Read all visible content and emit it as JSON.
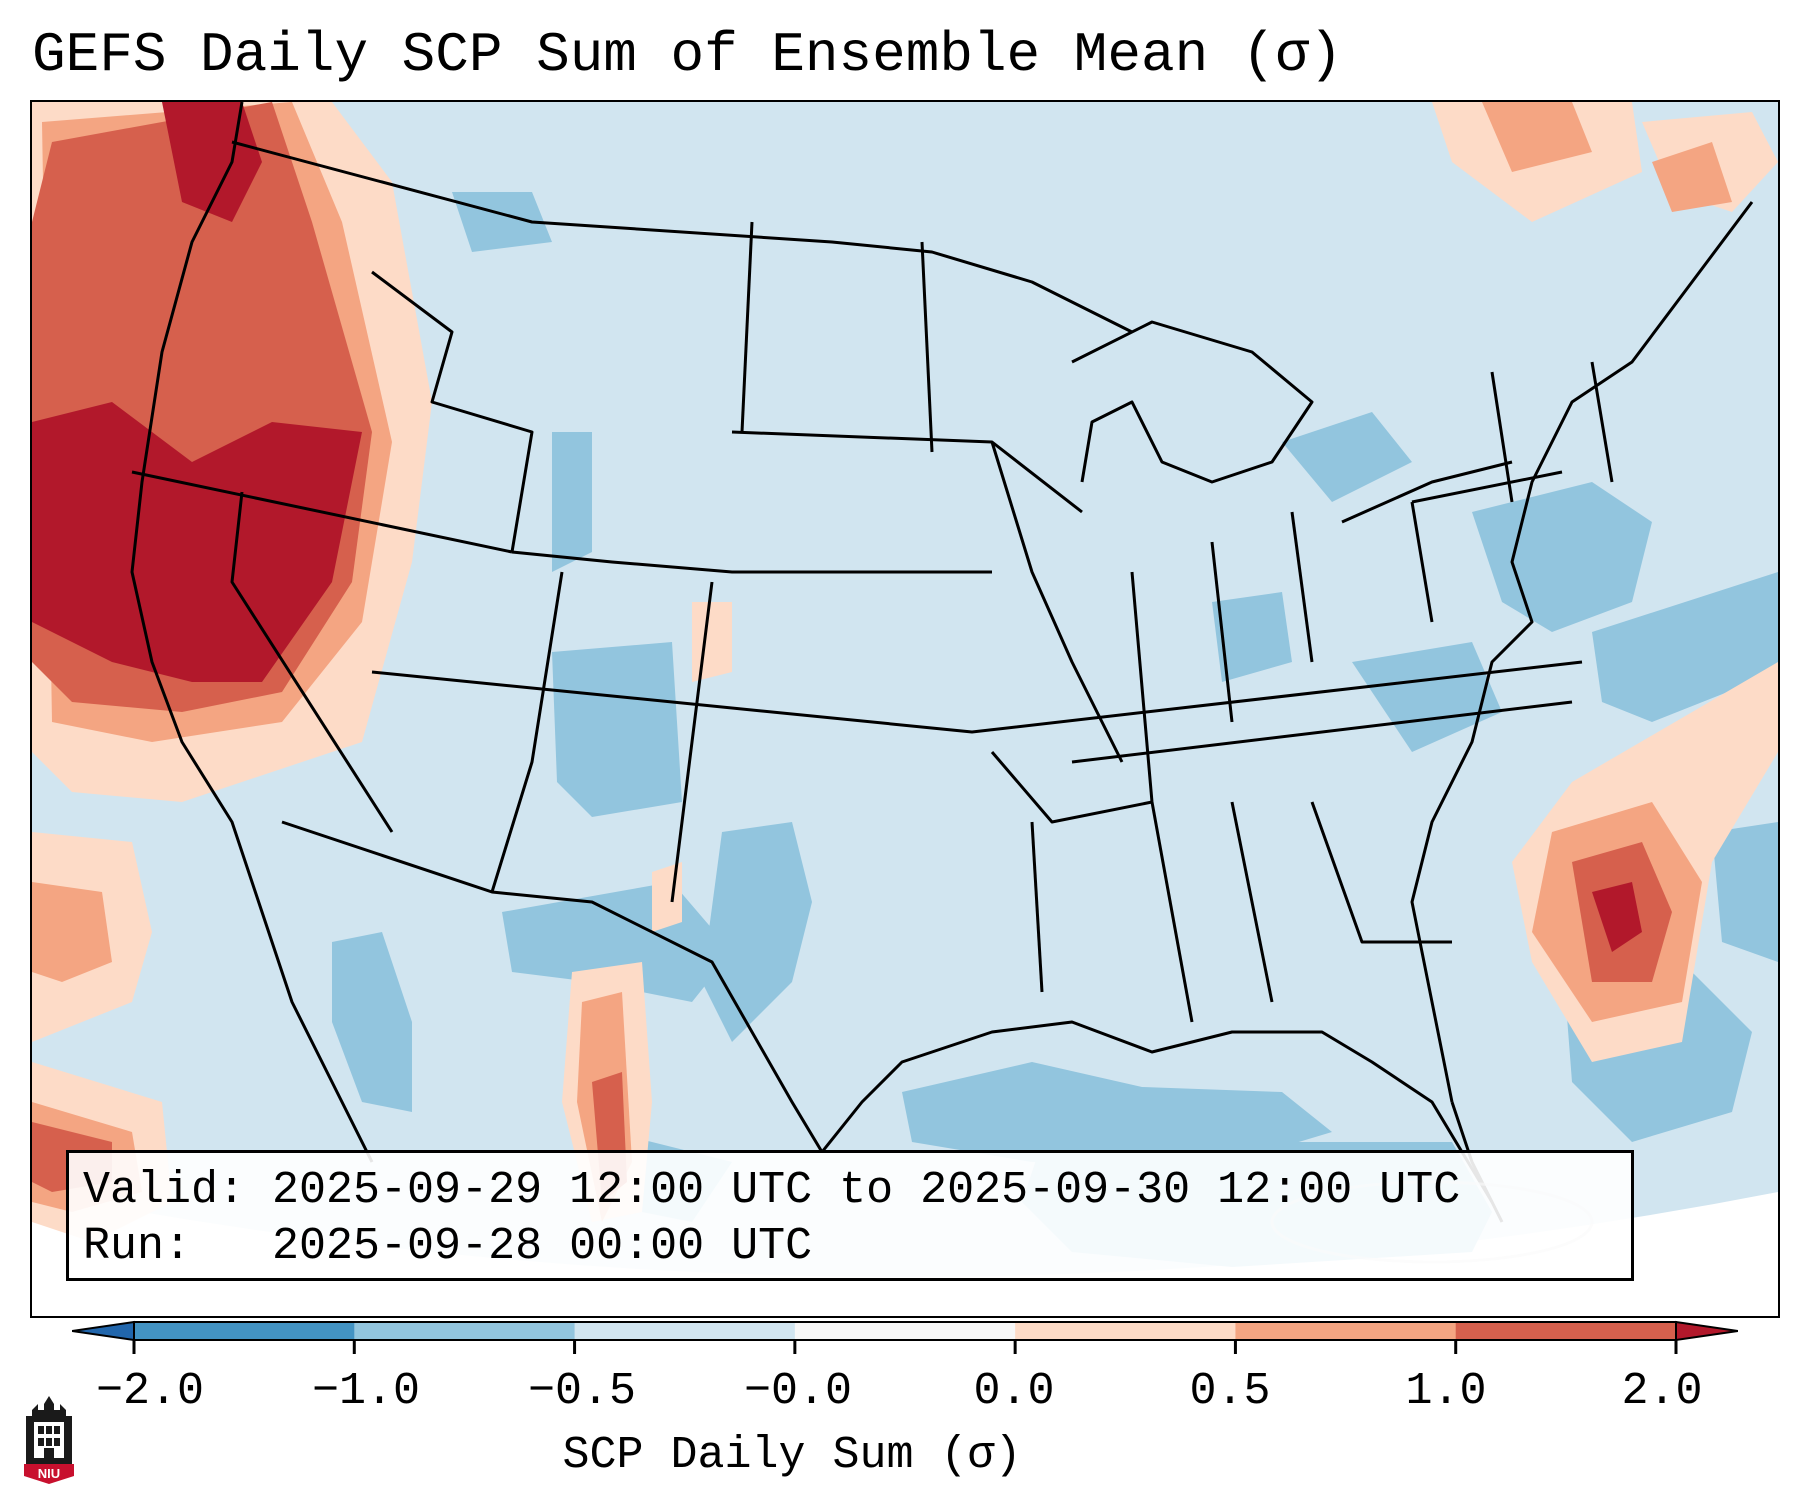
{
  "title": "GEFS Daily SCP Sum of Ensemble Mean (σ)",
  "info": {
    "valid": "Valid: 2025-09-29 12:00 UTC to 2025-09-30 12:00 UTC",
    "run": "Run:   2025-09-28 00:00 UTC"
  },
  "colorbar": {
    "label": "SCP Daily Sum (σ)",
    "ticks": [
      "−2.0",
      "−1.0",
      "−0.5",
      "−0.0",
      "0.0",
      "0.5",
      "1.0",
      "2.0"
    ],
    "bins": [
      {
        "from": -2.0,
        "to": -1.0,
        "color": "#4393c3"
      },
      {
        "from": -1.0,
        "to": -0.5,
        "color": "#92c5de"
      },
      {
        "from": -0.5,
        "to": -0.0,
        "color": "#d1e5f0"
      },
      {
        "from": -0.0,
        "to": 0.0,
        "color": "#f7f7f7"
      },
      {
        "from": 0.0,
        "to": 0.5,
        "color": "#fddbc7"
      },
      {
        "from": 0.5,
        "to": 1.0,
        "color": "#f4a582"
      },
      {
        "from": 1.0,
        "to": 2.0,
        "color": "#d6604d"
      }
    ],
    "extend_low_color": "#2166ac",
    "extend_high_color": "#b2182b"
  },
  "map": {
    "projection": "lambert-conformal-conus",
    "background_anomaly_color": "#d1e5f0",
    "features": [
      "coastlines",
      "us-state-borders",
      "country-borders"
    ]
  },
  "logo": {
    "text": "NIU"
  }
}
